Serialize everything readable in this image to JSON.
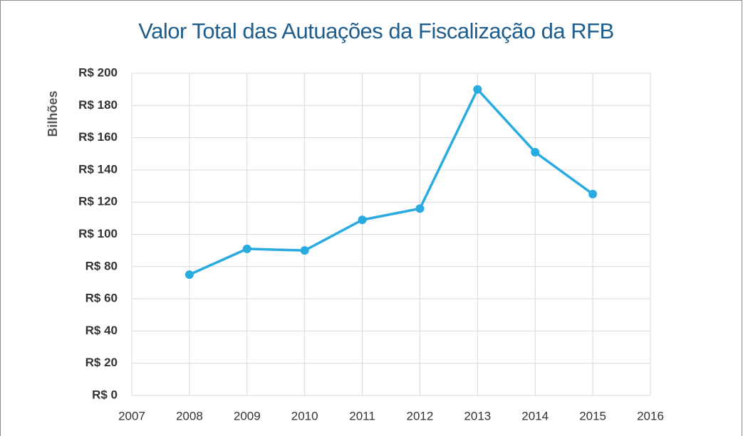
{
  "chart_data": {
    "type": "line",
    "title": "Valor Total das Autuações da Fiscalização da RFB",
    "ylabel": "Bilhões",
    "x": [
      2008,
      2009,
      2010,
      2011,
      2012,
      2013,
      2014,
      2015
    ],
    "values": [
      75,
      91,
      90,
      109,
      116,
      190,
      151,
      125
    ],
    "color": "#29abe2",
    "xlim": [
      2007,
      2016
    ],
    "xticks": [
      2007,
      2008,
      2009,
      2010,
      2011,
      2012,
      2013,
      2014,
      2015,
      2016
    ],
    "ylim": [
      0,
      200
    ],
    "yticks": [
      {
        "value": 0,
        "label": "R$ 0"
      },
      {
        "value": 20,
        "label": "R$ 20"
      },
      {
        "value": 40,
        "label": "R$ 40"
      },
      {
        "value": 60,
        "label": "R$ 60"
      },
      {
        "value": 80,
        "label": "R$ 80"
      },
      {
        "value": 100,
        "label": "R$ 100"
      },
      {
        "value": 120,
        "label": "R$ 120"
      },
      {
        "value": 140,
        "label": "R$ 140"
      },
      {
        "value": 160,
        "label": "R$ 160"
      },
      {
        "value": 180,
        "label": "R$ 180"
      },
      {
        "value": 200,
        "label": "R$ 200"
      }
    ],
    "grid": true
  }
}
